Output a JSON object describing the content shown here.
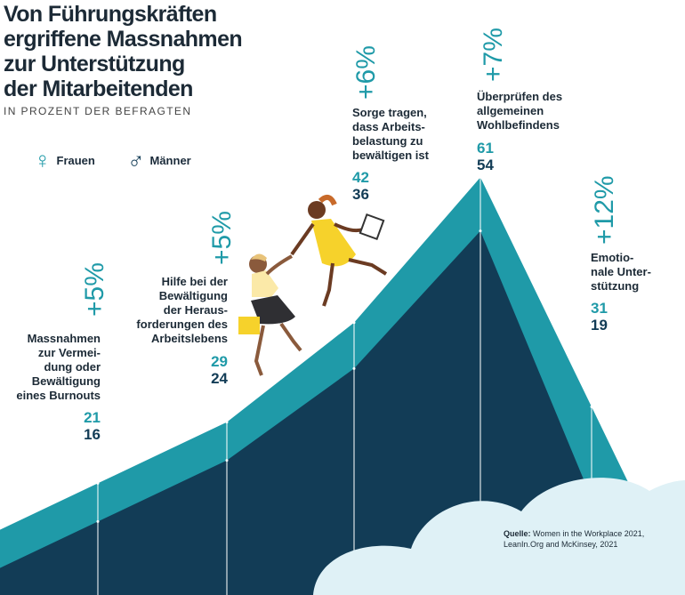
{
  "title_lines": [
    "Von Führungskräften",
    "ergriffene Massnahmen",
    "zur Unterstützung",
    "der Mitarbeitenden"
  ],
  "subtitle": "IN PROZENT DER BEFRAGTEN",
  "legend": {
    "women": "Frauen",
    "men": "Männer",
    "women_icon": "female-symbol-icon",
    "men_icon": "male-symbol-icon"
  },
  "source_label": "Quelle:",
  "source_text": "Women in the Workplace 2021, LeanIn.Org and McKinsey, 2021",
  "colors": {
    "women": "#1f9aa8",
    "men": "#123c56",
    "cloud": "#dff1f6"
  },
  "chart_data": {
    "type": "area",
    "categories": [
      "Massnahmen zur Vermeidung oder Bewältigung eines Burnouts",
      "Hilfe bei der Bewältigung der Herausforderungen des Arbeitslebens",
      "Sorge tragen, dass Arbeitsbelastung zu bewältigen ist",
      "Überprüfen des allgemeinen Wohlbefindens",
      "Emotionale Unterstützung"
    ],
    "label_lines": [
      [
        "Massnahmen",
        "zur Vermei-",
        "dung oder",
        "Bewältigung",
        "eines Burnouts"
      ],
      [
        "Hilfe bei der",
        "Bewältigung",
        "der Heraus-",
        "forderungen des",
        "Arbeitslebens"
      ],
      [
        "Sorge tragen,",
        "dass Arbeits-",
        "belastung zu",
        "bewältigen ist"
      ],
      [
        "Überprüfen des",
        "allgemeinen",
        "Wohlbefindens"
      ],
      [
        "Emotio-",
        "nale Unter-",
        "stützung"
      ]
    ],
    "series": [
      {
        "name": "Frauen",
        "values": [
          21,
          29,
          42,
          61,
          31
        ]
      },
      {
        "name": "Männer",
        "values": [
          16,
          24,
          36,
          54,
          19
        ]
      }
    ],
    "differences": [
      "+5%",
      "+5%",
      "+6%",
      "+7%",
      "+12%"
    ]
  }
}
